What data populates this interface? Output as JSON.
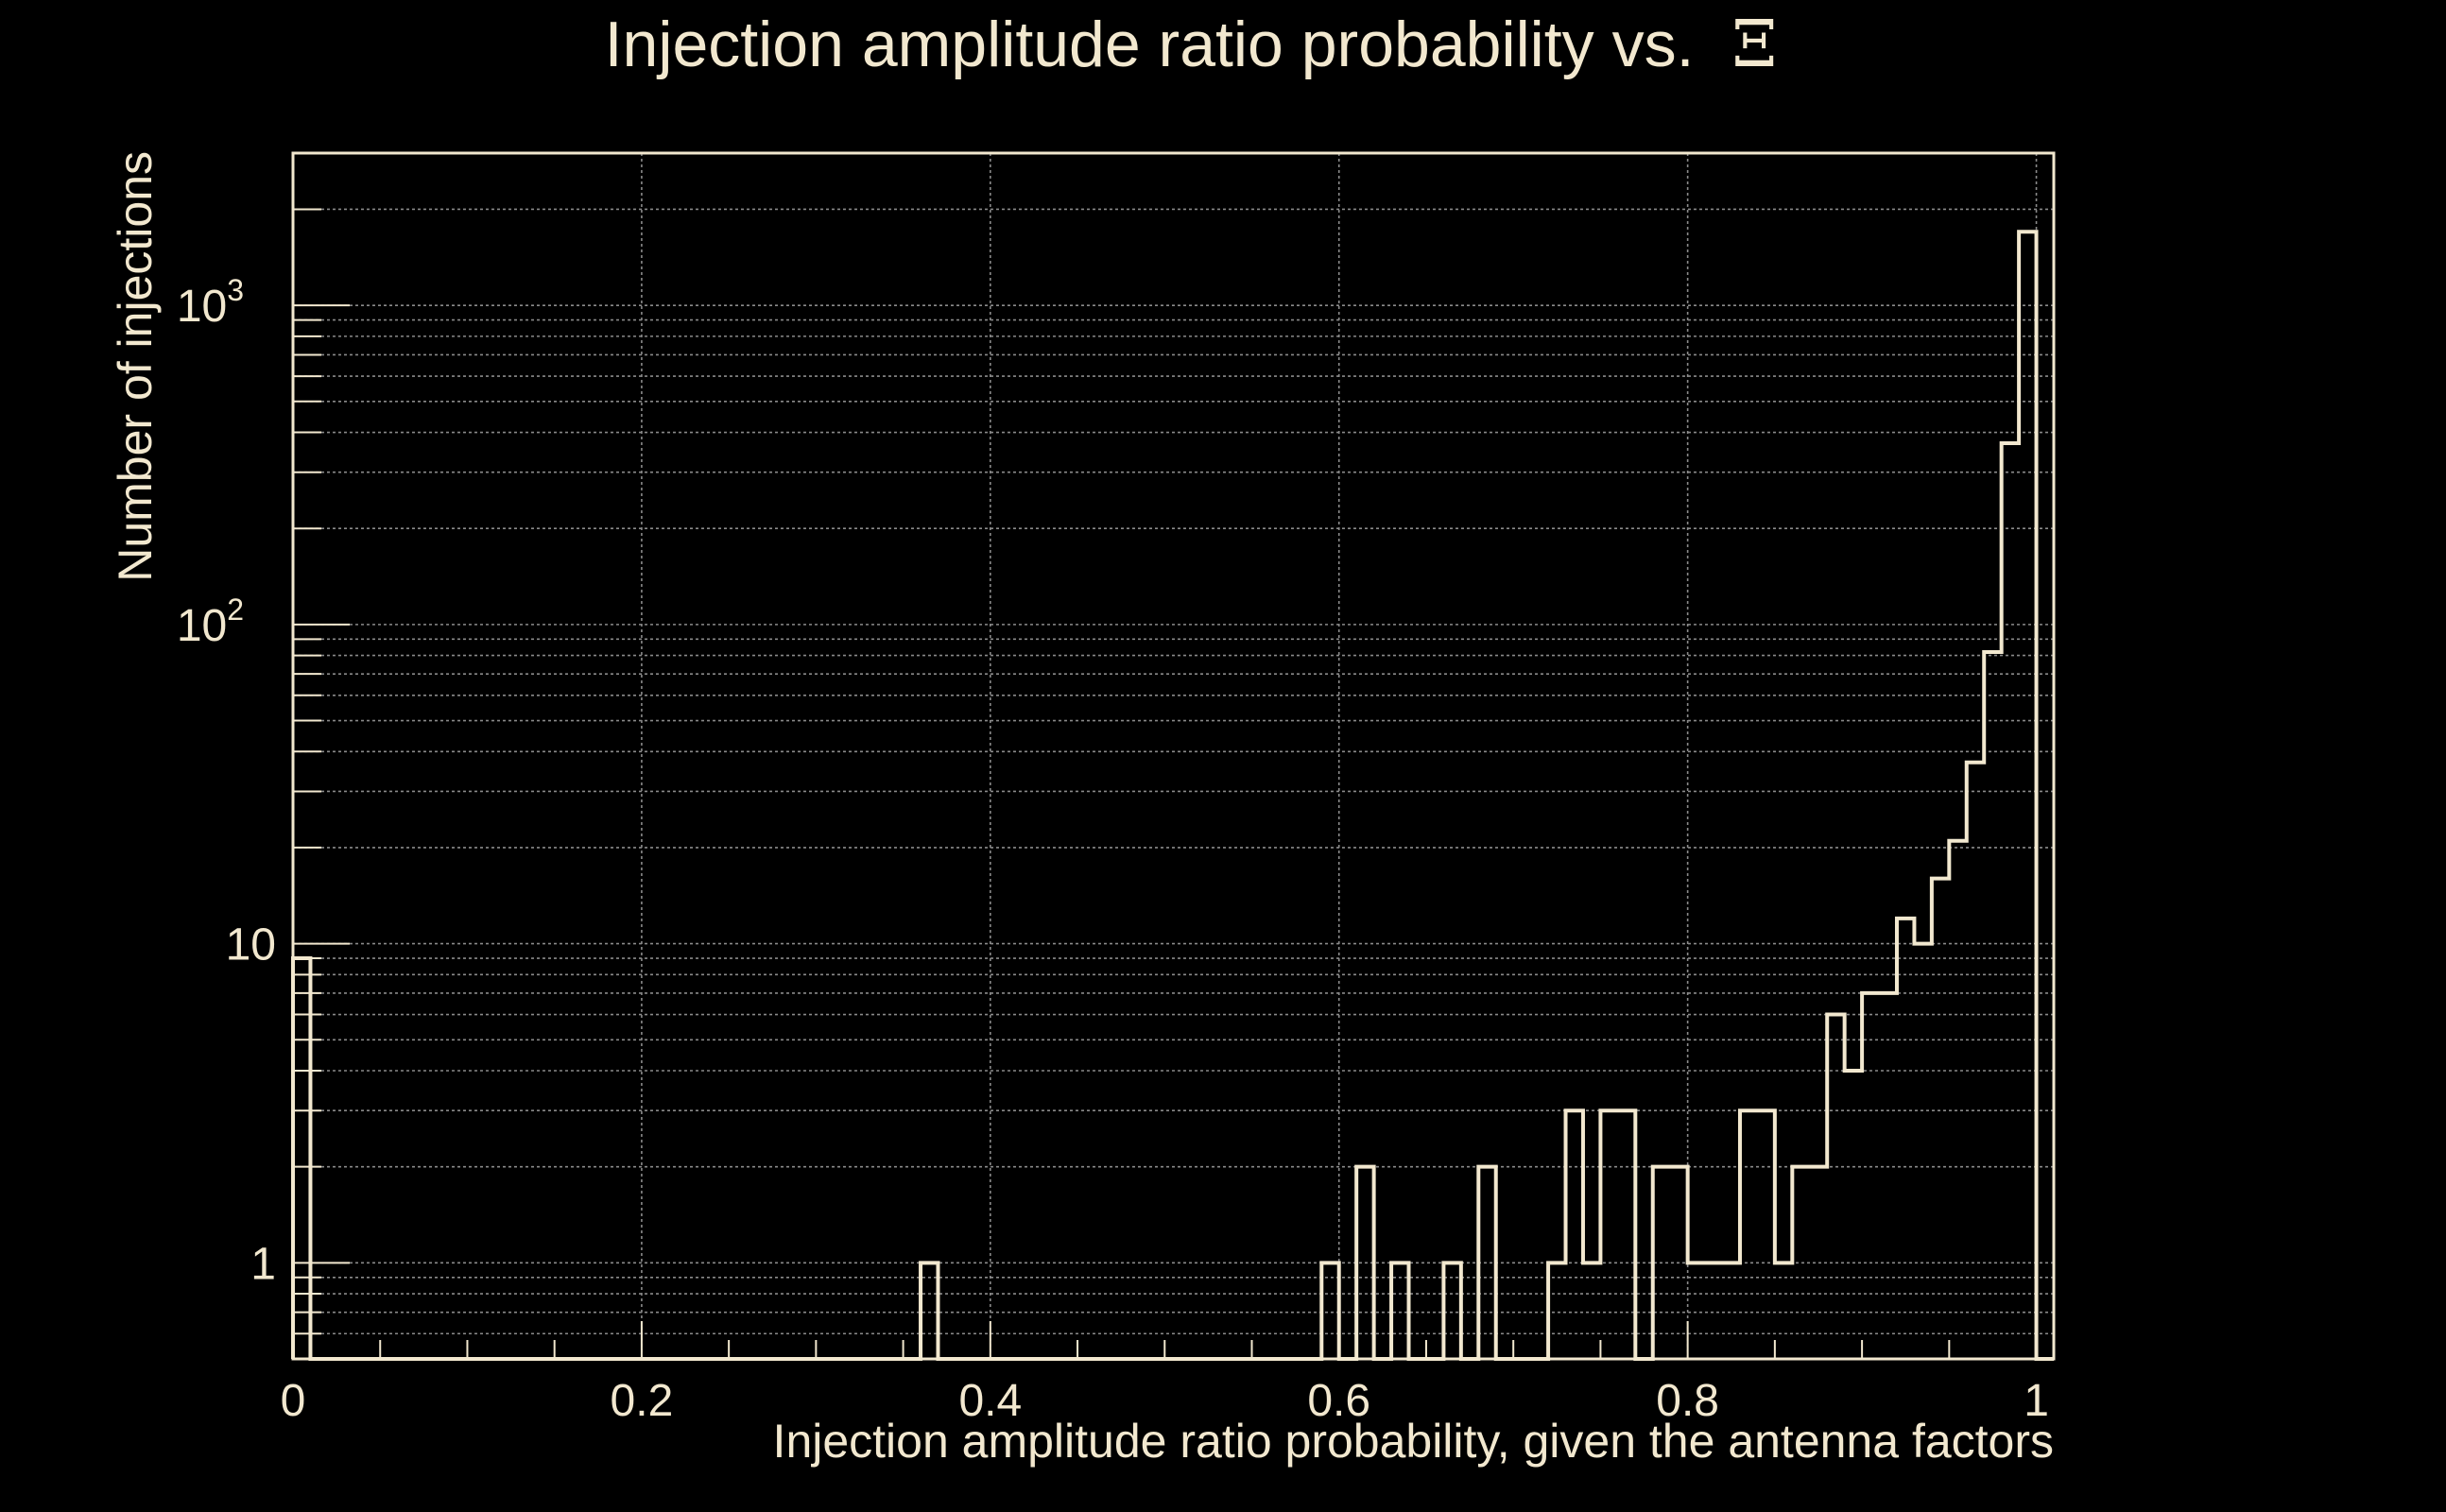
{
  "chart_data": {
    "type": "histogram",
    "title": "Injection amplitude ratio probability vs.",
    "title_symbol": "Ξ",
    "xlabel": "Injection amplitude ratio probability, given the antenna factors",
    "ylabel": "Number of injections",
    "xlim": [
      0,
      1.01
    ],
    "ylim": [
      0.5,
      3000
    ],
    "yscale": "log",
    "grid": true,
    "colors": {
      "background": "#000000",
      "foreground": "#f2e8cf",
      "grid": "#8a8a8a"
    },
    "x_ticks": [
      {
        "value": 0,
        "label": "0"
      },
      {
        "value": 0.2,
        "label": "0.2"
      },
      {
        "value": 0.4,
        "label": "0.4"
      },
      {
        "value": 0.6,
        "label": "0.6"
      },
      {
        "value": 0.8,
        "label": "0.8"
      },
      {
        "value": 1,
        "label": "1"
      }
    ],
    "y_ticks": [
      {
        "value": 1,
        "label": "1",
        "sup": ""
      },
      {
        "value": 10,
        "label": "10",
        "sup": ""
      },
      {
        "value": 100,
        "label": "10",
        "sup": "2"
      },
      {
        "value": 1000,
        "label": "10",
        "sup": "3"
      }
    ],
    "bin_width": 0.01,
    "bins": [
      {
        "x": 0.0,
        "count": 9
      },
      {
        "x": 0.36,
        "count": 1
      },
      {
        "x": 0.59,
        "count": 1
      },
      {
        "x": 0.61,
        "count": 2
      },
      {
        "x": 0.63,
        "count": 1
      },
      {
        "x": 0.66,
        "count": 1
      },
      {
        "x": 0.68,
        "count": 2
      },
      {
        "x": 0.72,
        "count": 1
      },
      {
        "x": 0.73,
        "count": 3
      },
      {
        "x": 0.74,
        "count": 1
      },
      {
        "x": 0.75,
        "count": 3
      },
      {
        "x": 0.76,
        "count": 3
      },
      {
        "x": 0.78,
        "count": 2
      },
      {
        "x": 0.79,
        "count": 2
      },
      {
        "x": 0.8,
        "count": 1
      },
      {
        "x": 0.81,
        "count": 1
      },
      {
        "x": 0.82,
        "count": 1
      },
      {
        "x": 0.83,
        "count": 3
      },
      {
        "x": 0.84,
        "count": 3
      },
      {
        "x": 0.85,
        "count": 1
      },
      {
        "x": 0.86,
        "count": 2
      },
      {
        "x": 0.87,
        "count": 2
      },
      {
        "x": 0.88,
        "count": 6
      },
      {
        "x": 0.89,
        "count": 4
      },
      {
        "x": 0.9,
        "count": 7
      },
      {
        "x": 0.91,
        "count": 7
      },
      {
        "x": 0.92,
        "count": 12
      },
      {
        "x": 0.93,
        "count": 10
      },
      {
        "x": 0.94,
        "count": 16
      },
      {
        "x": 0.95,
        "count": 21
      },
      {
        "x": 0.96,
        "count": 37
      },
      {
        "x": 0.97,
        "count": 82
      },
      {
        "x": 0.98,
        "count": 370
      },
      {
        "x": 0.99,
        "count": 1700
      }
    ]
  }
}
